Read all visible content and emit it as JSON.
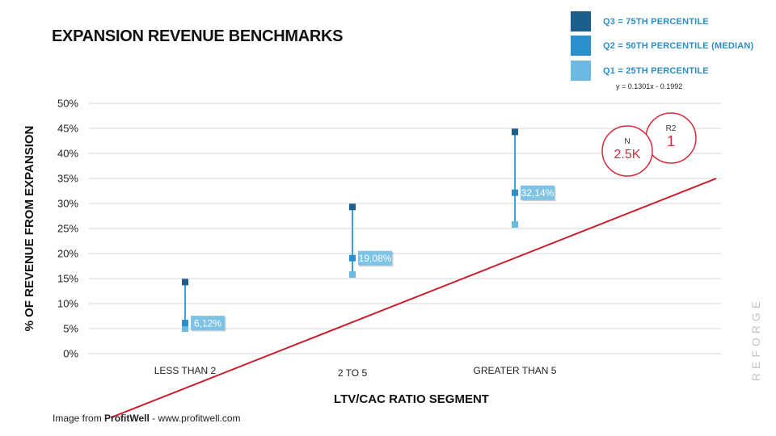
{
  "title": "EXPANSION REVENUE BENCHMARKS",
  "legend": [
    {
      "label": "Q3 = 75TH PERCENTILE",
      "color": "#1c5f8c"
    },
    {
      "label": "Q2 = 50TH PERCENTILE (MEDIAN)",
      "color": "#2b8fcc"
    },
    {
      "label": "Q1 = 25TH PERCENTILE",
      "color": "#6cb9e2"
    }
  ],
  "equation": "y = 0.1301x - 0.1992",
  "stats": {
    "n_label": "N",
    "n_value": "2.5K",
    "r2_label": "R2",
    "r2_value": "1"
  },
  "watermark": "REFORGE",
  "source": {
    "prefix": "Image from ",
    "brand": "ProfitWell",
    "suffix": " - www.profitwell.com"
  },
  "colors": {
    "trendline": "#c8202f",
    "grid": "#d6d6d6",
    "whisker": "#3aa3d8",
    "label_box": "#7cc3e6",
    "stat_circle": "#d32c3a"
  },
  "chart_data": {
    "type": "scatter",
    "title": "EXPANSION REVENUE BENCHMARKS",
    "xlabel": "LTV/CAC RATIO SEGMENT",
    "ylabel": "% OF REVENUE FROM EXPANSION",
    "categories": [
      "LESS THAN 2",
      "2 TO 5",
      "GREATER THAN 5"
    ],
    "ylim": [
      0,
      50
    ],
    "yticks": [
      0,
      5,
      10,
      15,
      20,
      25,
      30,
      35,
      40,
      45,
      50
    ],
    "ytick_labels": [
      "0%",
      "5%",
      "10%",
      "15%",
      "20%",
      "25%",
      "30%",
      "35%",
      "40%",
      "45%",
      "50%"
    ],
    "series": [
      {
        "name": "Q3 = 75TH PERCENTILE",
        "values": [
          14.3,
          29.3,
          44.3
        ]
      },
      {
        "name": "Q2 = 50TH PERCENTILE (MEDIAN)",
        "values": [
          6.12,
          19.08,
          32.14
        ]
      },
      {
        "name": "Q1 = 25TH PERCENTILE",
        "values": [
          5.0,
          15.8,
          25.8
        ]
      }
    ],
    "median_labels": [
      "6,12%",
      "19,08%",
      "32,14%"
    ],
    "trendline": {
      "slope": 0.1301,
      "intercept": -0.1992,
      "x_from": 0.55,
      "x_to": 4.22
    },
    "grid": true,
    "legend_position": "top-right"
  }
}
